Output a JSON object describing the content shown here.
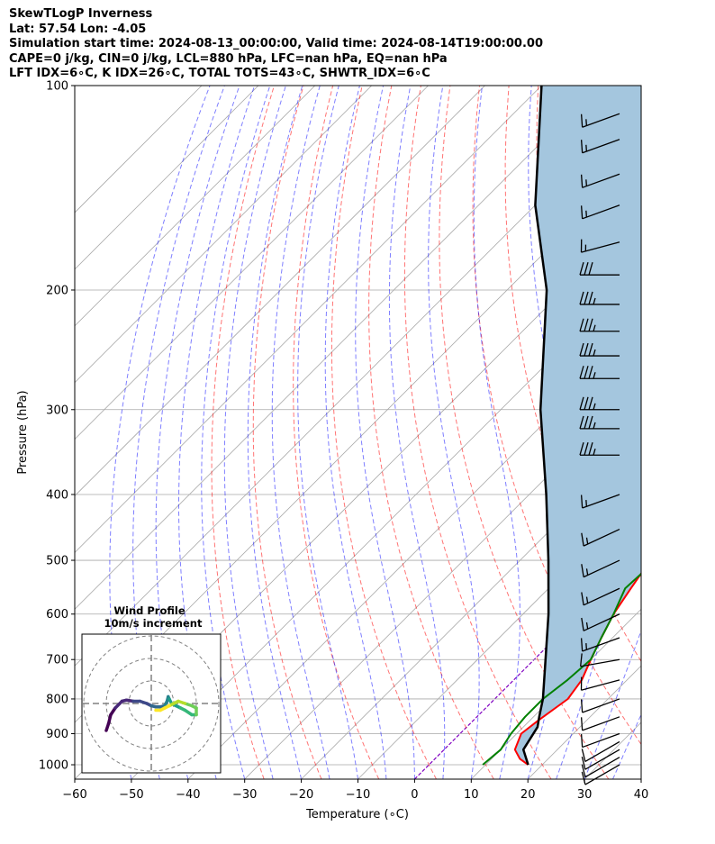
{
  "header": {
    "line1": "SkewTLogP Inverness",
    "line2": "Lat: 57.54   Lon: -4.05",
    "line3": "Simulation start time: 2024-08-13_00:00:00, Valid time: 2024-08-14T19:00:00.00",
    "line4": "CAPE=0 j/kg, CIN=0 j/kg, LCL=880 hPa, LFC=nan hPa, EQ=nan hPa",
    "line5": "LFT IDX=6∘C, K IDX=26∘C, TOTAL TOTS=43∘C, SHWTR_IDX=6∘C"
  },
  "chart_data": {
    "type": "line",
    "diagram": "skew-t log-p",
    "xlabel": "Temperature (∘C)",
    "ylabel": "Pressure (hPa)",
    "xlim": [
      -60,
      40
    ],
    "ylim": [
      1050,
      100
    ],
    "y_scale": "log",
    "x_ticks": [
      -60,
      -50,
      -40,
      -30,
      -20,
      -10,
      0,
      10,
      20,
      30,
      40
    ],
    "x_tick_labels": [
      "−60",
      "−50",
      "−40",
      "−30",
      "−20",
      "−10",
      "0",
      "10",
      "20",
      "30",
      "40"
    ],
    "y_ticks": [
      1000,
      900,
      800,
      700,
      600,
      500,
      400,
      300,
      200,
      100
    ],
    "y_tick_labels": [
      "1000",
      "900",
      "800",
      "700",
      "600",
      "500",
      "400",
      "300",
      "200",
      "100"
    ],
    "grid": true,
    "colors": {
      "temperature": "#ff0000",
      "dewpoint": "#008000",
      "parcel": "#000000",
      "shading": "#a4c6de",
      "dry_adiabat": "#ff0000",
      "moist_adiabat": "#0000ff",
      "mixing_ratio": "#0000ff",
      "isotherm": "#808080",
      "zero_isotherm": "#8000c0",
      "wind_barb": "#000000"
    },
    "series": [
      {
        "key": "temperature",
        "points": [
          [
            1000,
            17.5
          ],
          [
            980,
            15
          ],
          [
            950,
            12.5
          ],
          [
            900,
            10.8
          ],
          [
            860,
            11.5
          ],
          [
            800,
            12.9
          ],
          [
            750,
            12
          ],
          [
            700,
            10
          ],
          [
            650,
            8
          ],
          [
            600,
            6
          ],
          [
            550,
            4.5
          ],
          [
            500,
            3
          ],
          [
            450,
            3
          ],
          [
            400,
            2
          ],
          [
            350,
            1
          ],
          [
            330,
            -0.5
          ],
          [
            310,
            -3
          ],
          [
            290,
            -5
          ],
          [
            270,
            -5
          ],
          [
            250,
            -4
          ],
          [
            230,
            -2
          ],
          [
            210,
            0.5
          ],
          [
            190,
            3
          ],
          [
            170,
            5.5
          ],
          [
            150,
            8
          ],
          [
            130,
            11.5
          ],
          [
            115,
            13.5
          ],
          [
            100,
            15
          ]
        ]
      },
      {
        "key": "dewpoint",
        "points": [
          [
            1000,
            9.5
          ],
          [
            950,
            10
          ],
          [
            900,
            9
          ],
          [
            850,
            8.5
          ],
          [
            800,
            8.5
          ],
          [
            750,
            9.5
          ],
          [
            700,
            10
          ],
          [
            650,
            8
          ],
          [
            600,
            6
          ],
          [
            550,
            3.5
          ],
          [
            500,
            4
          ],
          [
            450,
            4
          ],
          [
            410,
            1
          ],
          [
            380,
            -1
          ],
          [
            350,
            -1.5
          ],
          [
            320,
            -3.5
          ],
          [
            290,
            -6
          ],
          [
            270,
            -9.5
          ],
          [
            255,
            -15
          ],
          [
            240,
            -17
          ],
          [
            225,
            -14
          ],
          [
            210,
            -14
          ],
          [
            195,
            -15
          ],
          [
            180,
            -19
          ],
          [
            170,
            -26
          ],
          [
            140,
            -22
          ],
          [
            120,
            -17
          ],
          [
            100,
            -10
          ]
        ]
      },
      {
        "key": "parcel",
        "points": [
          [
            1000,
            17.5
          ],
          [
            950,
            14
          ],
          [
            880,
            12.5
          ],
          [
            850,
            11
          ],
          [
            800,
            8.5
          ],
          [
            700,
            2
          ],
          [
            600,
            -5.5
          ],
          [
            500,
            -15
          ],
          [
            400,
            -27
          ],
          [
            300,
            -43
          ],
          [
            250,
            -52
          ],
          [
            200,
            -63
          ],
          [
            150,
            -80
          ],
          [
            100,
            -100
          ]
        ]
      }
    ],
    "winds_kt": [
      {
        "p": 1000,
        "dir": 240,
        "spd": 10
      },
      {
        "p": 975,
        "dir": 240,
        "spd": 10
      },
      {
        "p": 950,
        "dir": 240,
        "spd": 10
      },
      {
        "p": 925,
        "dir": 240,
        "spd": 10
      },
      {
        "p": 900,
        "dir": 250,
        "spd": 10
      },
      {
        "p": 850,
        "dir": 250,
        "spd": 10
      },
      {
        "p": 800,
        "dir": 250,
        "spd": 10
      },
      {
        "p": 750,
        "dir": 255,
        "spd": 10
      },
      {
        "p": 700,
        "dir": 260,
        "spd": 10
      },
      {
        "p": 650,
        "dir": 250,
        "spd": 15
      },
      {
        "p": 600,
        "dir": 245,
        "spd": 15
      },
      {
        "p": 550,
        "dir": 245,
        "spd": 15
      },
      {
        "p": 500,
        "dir": 245,
        "spd": 15
      },
      {
        "p": 450,
        "dir": 245,
        "spd": 15
      },
      {
        "p": 400,
        "dir": 250,
        "spd": 15
      },
      {
        "p": 350,
        "dir": 270,
        "spd": 35
      },
      {
        "p": 320,
        "dir": 270,
        "spd": 35
      },
      {
        "p": 300,
        "dir": 270,
        "spd": 35
      },
      {
        "p": 270,
        "dir": 270,
        "spd": 35
      },
      {
        "p": 250,
        "dir": 270,
        "spd": 35
      },
      {
        "p": 230,
        "dir": 270,
        "spd": 35
      },
      {
        "p": 210,
        "dir": 270,
        "spd": 35
      },
      {
        "p": 190,
        "dir": 270,
        "spd": 30
      },
      {
        "p": 170,
        "dir": 255,
        "spd": 15
      },
      {
        "p": 150,
        "dir": 250,
        "spd": 15
      },
      {
        "p": 135,
        "dir": 250,
        "spd": 15
      },
      {
        "p": 120,
        "dir": 250,
        "spd": 15
      },
      {
        "p": 110,
        "dir": 250,
        "spd": 15
      }
    ],
    "inset": {
      "title_line1": "Wind Profile",
      "title_line2": "10m/s increment",
      "rings_ms": [
        10,
        20,
        30
      ],
      "hodograph_uv": [
        [
          -20,
          -12
        ],
        [
          -19,
          -9
        ],
        [
          -18,
          -5
        ],
        [
          -16,
          -2
        ],
        [
          -13,
          1
        ],
        [
          -11,
          1.5
        ],
        [
          -8,
          1
        ],
        [
          -5,
          1
        ],
        [
          -2,
          0
        ],
        [
          0,
          -1
        ],
        [
          2,
          -1.5
        ],
        [
          4,
          -1.5
        ],
        [
          6,
          -1
        ],
        [
          7,
          1
        ],
        [
          7.5,
          3
        ],
        [
          8,
          2
        ],
        [
          9,
          0
        ],
        [
          11,
          -1
        ],
        [
          13,
          -2
        ],
        [
          15,
          -3
        ],
        [
          18,
          -5
        ],
        [
          20,
          -5
        ],
        [
          20,
          -2
        ],
        [
          18,
          -1
        ],
        [
          15,
          0
        ],
        [
          12,
          1
        ],
        [
          10,
          0
        ],
        [
          8,
          -1
        ],
        [
          6,
          -2
        ],
        [
          4,
          -3
        ],
        [
          2,
          -3
        ]
      ]
    }
  }
}
